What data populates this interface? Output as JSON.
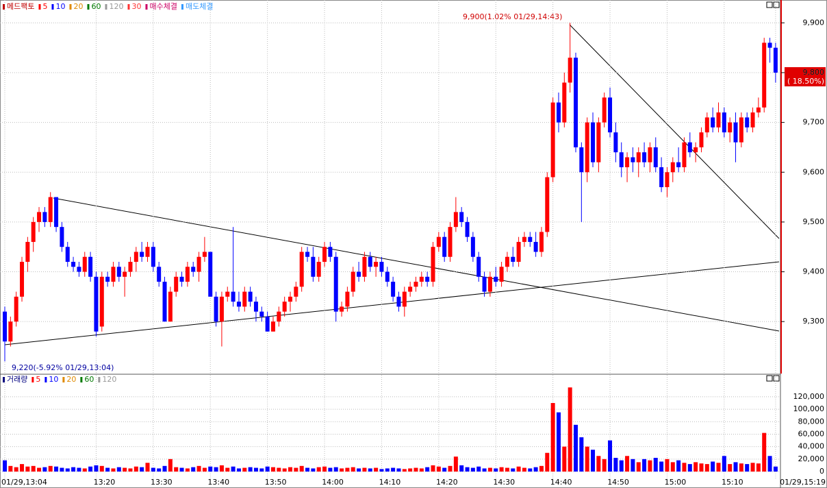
{
  "chart_data": {
    "type": "candlestick",
    "legend": [
      {
        "label": "메드팩토",
        "color": "#c00000"
      },
      {
        "label": "5",
        "color": "#ff0000"
      },
      {
        "label": "10",
        "color": "#0000ff"
      },
      {
        "label": "20",
        "color": "#e08a00"
      },
      {
        "label": "60",
        "color": "#007a00"
      },
      {
        "label": "120",
        "color": "#999999"
      },
      {
        "label": "30",
        "color": "#ff3333"
      },
      {
        "label": "매수체결",
        "color": "#cc0066"
      },
      {
        "label": "매도체결",
        "color": "#3399ff"
      }
    ],
    "volume_legend": [
      {
        "label": "거래량",
        "color": "#000080"
      },
      {
        "label": "5",
        "color": "#ff0000"
      },
      {
        "label": "10",
        "color": "#0000ff"
      },
      {
        "label": "20",
        "color": "#e08a00"
      },
      {
        "label": "60",
        "color": "#007a00"
      },
      {
        "label": "120",
        "color": "#999999"
      }
    ],
    "up_color": "#ff0000",
    "down_color": "#0000ff",
    "high_annotation": "9,900(1.02% 01/29,14:43)",
    "low_annotation": "9,220(-5.92% 01/29,13:04)",
    "current_price": "9,800",
    "current_change": "( 18.50%)",
    "categories": [
      "01/29,13:04",
      null,
      null,
      null,
      null,
      null,
      null,
      null,
      null,
      null,
      null,
      null,
      null,
      null,
      null,
      null,
      "13:20",
      null,
      null,
      null,
      null,
      null,
      null,
      null,
      null,
      null,
      "13:30",
      null,
      null,
      null,
      null,
      null,
      null,
      null,
      null,
      null,
      "13:40",
      null,
      null,
      null,
      null,
      null,
      null,
      null,
      null,
      null,
      "13:50",
      null,
      null,
      null,
      null,
      null,
      null,
      null,
      null,
      null,
      "14:00",
      null,
      null,
      null,
      null,
      null,
      null,
      null,
      null,
      null,
      "14:10",
      null,
      null,
      null,
      null,
      null,
      null,
      null,
      null,
      null,
      "14:20",
      null,
      null,
      null,
      null,
      null,
      null,
      null,
      null,
      null,
      "14:30",
      null,
      null,
      null,
      null,
      null,
      null,
      null,
      null,
      null,
      "14:40",
      null,
      null,
      null,
      null,
      null,
      null,
      null,
      null,
      null,
      "14:50",
      null,
      null,
      null,
      null,
      null,
      null,
      null,
      null,
      null,
      "15:00",
      null,
      null,
      null,
      null,
      null,
      null,
      null,
      null,
      null,
      "15:10",
      null,
      null,
      null,
      null,
      null,
      null,
      null,
      null,
      "01/29,15:19"
    ],
    "candles": [
      [
        9320,
        9330,
        9220,
        9260
      ],
      [
        9260,
        9310,
        9250,
        9300
      ],
      [
        9300,
        9360,
        9290,
        9350
      ],
      [
        9350,
        9430,
        9340,
        9420
      ],
      [
        9420,
        9470,
        9400,
        9460
      ],
      [
        9460,
        9510,
        9440,
        9500
      ],
      [
        9500,
        9530,
        9480,
        9520
      ],
      [
        9520,
        9530,
        9490,
        9500
      ],
      [
        9500,
        9560,
        9490,
        9550
      ],
      [
        9550,
        9550,
        9480,
        9490
      ],
      [
        9490,
        9500,
        9440,
        9450
      ],
      [
        9450,
        9460,
        9410,
        9420
      ],
      [
        9420,
        9430,
        9400,
        9410
      ],
      [
        9410,
        9420,
        9390,
        9400
      ],
      [
        9400,
        9440,
        9390,
        9430
      ],
      [
        9430,
        9440,
        9380,
        9390
      ],
      [
        9390,
        9400,
        9270,
        9280
      ],
      [
        9290,
        9400,
        9280,
        9390
      ],
      [
        9390,
        9400,
        9370,
        9380
      ],
      [
        9380,
        9420,
        9370,
        9410
      ],
      [
        9410,
        9420,
        9380,
        9390
      ],
      [
        9390,
        9410,
        9350,
        9400
      ],
      [
        9400,
        9430,
        9390,
        9420
      ],
      [
        9420,
        9450,
        9400,
        9440
      ],
      [
        9440,
        9460,
        9420,
        9430
      ],
      [
        9430,
        9460,
        9420,
        9450
      ],
      [
        9450,
        9460,
        9400,
        9410
      ],
      [
        9410,
        9420,
        9370,
        9380
      ],
      [
        9380,
        9390,
        9300,
        9300
      ],
      [
        9300,
        9370,
        9300,
        9360
      ],
      [
        9360,
        9400,
        9350,
        9390
      ],
      [
        9390,
        9400,
        9370,
        9380
      ],
      [
        9380,
        9420,
        9370,
        9410
      ],
      [
        9410,
        9420,
        9390,
        9400
      ],
      [
        9400,
        9440,
        9380,
        9430
      ],
      [
        9430,
        9470,
        9420,
        9440
      ],
      [
        9440,
        9440,
        9350,
        9350
      ],
      [
        9350,
        9360,
        9290,
        9300
      ],
      [
        9300,
        9360,
        9250,
        9350
      ],
      [
        9350,
        9370,
        9340,
        9360
      ],
      [
        9360,
        9490,
        9330,
        9340
      ],
      [
        9340,
        9360,
        9320,
        9330
      ],
      [
        9330,
        9370,
        9320,
        9360
      ],
      [
        9360,
        9370,
        9330,
        9340
      ],
      [
        9340,
        9350,
        9300,
        9320
      ],
      [
        9320,
        9330,
        9300,
        9310
      ],
      [
        9310,
        9320,
        9280,
        9280
      ],
      [
        9280,
        9310,
        9280,
        9300
      ],
      [
        9300,
        9330,
        9290,
        9320
      ],
      [
        9320,
        9350,
        9310,
        9340
      ],
      [
        9340,
        9360,
        9320,
        9350
      ],
      [
        9350,
        9380,
        9340,
        9370
      ],
      [
        9370,
        9450,
        9360,
        9440
      ],
      [
        9440,
        9450,
        9420,
        9430
      ],
      [
        9430,
        9450,
        9380,
        9390
      ],
      [
        9390,
        9430,
        9380,
        9420
      ],
      [
        9420,
        9460,
        9410,
        9450
      ],
      [
        9450,
        9460,
        9420,
        9430
      ],
      [
        9430,
        9440,
        9300,
        9320
      ],
      [
        9320,
        9340,
        9310,
        9330
      ],
      [
        9330,
        9370,
        9320,
        9360
      ],
      [
        9360,
        9410,
        9350,
        9400
      ],
      [
        9400,
        9420,
        9380,
        9390
      ],
      [
        9390,
        9440,
        9380,
        9430
      ],
      [
        9430,
        9440,
        9400,
        9410
      ],
      [
        9410,
        9430,
        9390,
        9420
      ],
      [
        9420,
        9430,
        9390,
        9400
      ],
      [
        9400,
        9410,
        9370,
        9380
      ],
      [
        9380,
        9390,
        9340,
        9350
      ],
      [
        9350,
        9360,
        9320,
        9330
      ],
      [
        9330,
        9370,
        9310,
        9360
      ],
      [
        9360,
        9380,
        9350,
        9370
      ],
      [
        9370,
        9390,
        9360,
        9380
      ],
      [
        9380,
        9400,
        9370,
        9390
      ],
      [
        9390,
        9400,
        9370,
        9380
      ],
      [
        9380,
        9460,
        9370,
        9450
      ],
      [
        9450,
        9480,
        9440,
        9470
      ],
      [
        9470,
        9480,
        9420,
        9430
      ],
      [
        9430,
        9500,
        9420,
        9490
      ],
      [
        9490,
        9550,
        9480,
        9520
      ],
      [
        9520,
        9530,
        9490,
        9500
      ],
      [
        9500,
        9510,
        9460,
        9470
      ],
      [
        9470,
        9480,
        9420,
        9430
      ],
      [
        9430,
        9440,
        9380,
        9390
      ],
      [
        9390,
        9400,
        9350,
        9360
      ],
      [
        9360,
        9400,
        9350,
        9390
      ],
      [
        9390,
        9410,
        9370,
        9380
      ],
      [
        9380,
        9420,
        9370,
        9410
      ],
      [
        9410,
        9440,
        9400,
        9430
      ],
      [
        9430,
        9450,
        9410,
        9420
      ],
      [
        9420,
        9470,
        9410,
        9460
      ],
      [
        9460,
        9480,
        9450,
        9470
      ],
      [
        9470,
        9480,
        9450,
        9460
      ],
      [
        9460,
        9480,
        9430,
        9440
      ],
      [
        9440,
        9490,
        9430,
        9480
      ],
      [
        9480,
        9600,
        9470,
        9590
      ],
      [
        9590,
        9750,
        9580,
        9740
      ],
      [
        9740,
        9760,
        9680,
        9700
      ],
      [
        9700,
        9800,
        9690,
        9780
      ],
      [
        9780,
        9900,
        9760,
        9830
      ],
      [
        9830,
        9840,
        9640,
        9650
      ],
      [
        9650,
        9660,
        9500,
        9600
      ],
      [
        9600,
        9710,
        9580,
        9700
      ],
      [
        9700,
        9720,
        9610,
        9620
      ],
      [
        9620,
        9710,
        9600,
        9700
      ],
      [
        9700,
        9760,
        9690,
        9750
      ],
      [
        9750,
        9770,
        9670,
        9680
      ],
      [
        9680,
        9700,
        9620,
        9640
      ],
      [
        9640,
        9660,
        9590,
        9610
      ],
      [
        9610,
        9640,
        9580,
        9630
      ],
      [
        9630,
        9650,
        9600,
        9620
      ],
      [
        9620,
        9650,
        9590,
        9640
      ],
      [
        9640,
        9660,
        9610,
        9620
      ],
      [
        9620,
        9660,
        9600,
        9650
      ],
      [
        9650,
        9670,
        9600,
        9610
      ],
      [
        9610,
        9630,
        9560,
        9570
      ],
      [
        9570,
        9610,
        9550,
        9600
      ],
      [
        9600,
        9630,
        9580,
        9620
      ],
      [
        9620,
        9650,
        9600,
        9610
      ],
      [
        9610,
        9670,
        9600,
        9660
      ],
      [
        9660,
        9680,
        9630,
        9640
      ],
      [
        9640,
        9660,
        9620,
        9650
      ],
      [
        9650,
        9690,
        9640,
        9680
      ],
      [
        9680,
        9720,
        9670,
        9710
      ],
      [
        9710,
        9730,
        9680,
        9690
      ],
      [
        9690,
        9740,
        9680,
        9720
      ],
      [
        9720,
        9730,
        9670,
        9680
      ],
      [
        9680,
        9710,
        9660,
        9700
      ],
      [
        9700,
        9720,
        9620,
        9660
      ],
      [
        9660,
        9720,
        9650,
        9710
      ],
      [
        9710,
        9720,
        9680,
        9690
      ],
      [
        9690,
        9730,
        9680,
        9720
      ],
      [
        9720,
        9750,
        9710,
        9730
      ],
      [
        9730,
        9870,
        9720,
        9860
      ],
      [
        9860,
        9870,
        9820,
        9850
      ],
      [
        9850,
        9860,
        9780,
        9800
      ]
    ],
    "volume": [
      18000,
      9000,
      7000,
      12000,
      8000,
      9000,
      6000,
      7000,
      9000,
      8000,
      6000,
      5000,
      7000,
      6000,
      5000,
      8000,
      10000,
      9000,
      6000,
      5000,
      7000,
      6000,
      5000,
      8000,
      7000,
      14000,
      6000,
      5000,
      9000,
      20000,
      7000,
      6000,
      5000,
      7000,
      9000,
      6000,
      8000,
      7000,
      10000,
      6000,
      8000,
      5000,
      6000,
      7000,
      6000,
      5000,
      8000,
      7000,
      6000,
      5000,
      7000,
      6000,
      9000,
      6000,
      5000,
      7000,
      8000,
      6000,
      7000,
      5000,
      6000,
      7000,
      5000,
      6000,
      5000,
      6000,
      4000,
      5000,
      6000,
      5000,
      4000,
      5000,
      6000,
      5000,
      7000,
      10000,
      8000,
      6000,
      9000,
      24000,
      10000,
      7000,
      6000,
      8000,
      5000,
      6000,
      5000,
      7000,
      6000,
      5000,
      8000,
      6000,
      5000,
      7000,
      9000,
      30000,
      110000,
      95000,
      40000,
      135000,
      75000,
      55000,
      40000,
      35000,
      25000,
      20000,
      50000,
      22000,
      18000,
      25000,
      20000,
      15000,
      20000,
      18000,
      22000,
      16000,
      20000,
      15000,
      18000,
      14000,
      12000,
      15000,
      13000,
      12000,
      16000,
      14000,
      25000,
      12000,
      15000,
      13000,
      12000,
      14000,
      13000,
      62000,
      25000,
      8000
    ],
    "ylim": [
      9197,
      9939
    ],
    "yticks": [
      {
        "value": 9300,
        "label": "9,300"
      },
      {
        "value": 9400,
        "label": "9,400"
      },
      {
        "value": 9500,
        "label": "9,500"
      },
      {
        "value": 9600,
        "label": "9,600"
      },
      {
        "value": 9700,
        "label": "9,700"
      },
      {
        "value": 9800,
        "label": "9,800"
      },
      {
        "value": 9900,
        "label": "9,900"
      }
    ],
    "volume_ylim": [
      -11000,
      154000
    ],
    "volume_yticks": [
      0,
      {
        "value": 20000,
        "label": "20,000"
      },
      {
        "value": 40000,
        "label": "40,000"
      },
      {
        "value": 60000,
        "label": "60,000"
      },
      {
        "value": 80000,
        "label": "80,000"
      },
      {
        "value": 100000,
        "label": "100,000"
      },
      {
        "value": 120000,
        "label": "120,000"
      }
    ],
    "grid": true
  }
}
